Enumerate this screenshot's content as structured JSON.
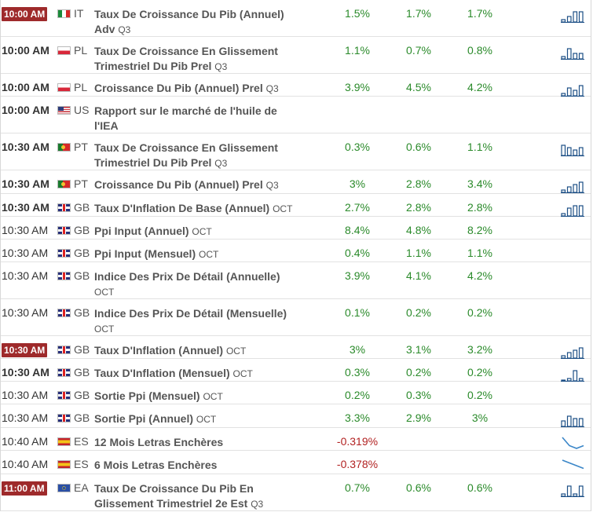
{
  "events": [
    {
      "time": "10:00 AM",
      "time_style": "box",
      "flag": "it",
      "country": "IT",
      "event": "Taux De Croissance Du Pib (Annuel) Adv",
      "period": "Q3",
      "actual": "1.5%",
      "consensus": "1.7%",
      "previous": "1.7%",
      "spark": {
        "type": "bars",
        "values": [
          1,
          2,
          4,
          4
        ]
      },
      "height": 47
    },
    {
      "time": "10:00 AM",
      "time_style": "bold",
      "flag": "pl",
      "country": "PL",
      "event": "Taux De Croissance En Glissement Trimestriel Du Pib Prel",
      "period": "Q3",
      "actual": "1.1%",
      "consensus": "0.7%",
      "previous": "0.8%",
      "spark": {
        "type": "bars",
        "values": [
          1,
          4,
          2,
          2
        ]
      },
      "height": 47
    },
    {
      "time": "10:00 AM",
      "time_style": "bold",
      "flag": "pl",
      "country": "PL",
      "event": "Croissance Du Pib (Annuel) Prel",
      "period": "Q3",
      "actual": "3.9%",
      "consensus": "4.5%",
      "previous": "4.2%",
      "spark": {
        "type": "bars",
        "values": [
          1,
          3,
          2,
          4
        ]
      },
      "height": 29
    },
    {
      "time": "10:00 AM",
      "time_style": "bold",
      "flag": "us",
      "country": "US",
      "event": "Rapport sur le marché de l'huile de l'IEA",
      "period": "",
      "actual": "",
      "consensus": "",
      "previous": "",
      "spark": null,
      "height": 47
    },
    {
      "time": "10:30 AM",
      "time_style": "bold",
      "flag": "pt",
      "country": "PT",
      "event": "Taux De Croissance En Glissement Trimestriel Du Pib Prel",
      "period": "Q3",
      "actual": "0.3%",
      "consensus": "0.6%",
      "previous": "1.1%",
      "spark": {
        "type": "bars",
        "values": [
          4,
          3,
          2,
          3
        ]
      },
      "height": 47
    },
    {
      "time": "10:30 AM",
      "time_style": "bold",
      "flag": "pt",
      "country": "PT",
      "event": "Croissance Du Pib (Annuel) Prel",
      "period": "Q3",
      "actual": "3%",
      "consensus": "2.8%",
      "previous": "3.4%",
      "spark": {
        "type": "bars",
        "values": [
          1,
          2,
          3,
          4
        ]
      },
      "height": 30
    },
    {
      "time": "10:30 AM",
      "time_style": "bold",
      "flag": "gb",
      "country": "GB",
      "event": "Taux D'Inflation De Base (Annuel)",
      "period": "OCT",
      "actual": "2.7%",
      "consensus": "2.8%",
      "previous": "2.8%",
      "spark": {
        "type": "bars",
        "values": [
          1,
          3,
          4,
          4
        ]
      },
      "height": 29
    },
    {
      "time": "10:30 AM",
      "time_style": "normal",
      "flag": "gb",
      "country": "GB",
      "event": "Ppi Input (Annuel)",
      "period": "OCT",
      "actual": "8.4%",
      "consensus": "4.8%",
      "previous": "8.2%",
      "spark": null,
      "height": 29
    },
    {
      "time": "10:30 AM",
      "time_style": "normal",
      "flag": "gb",
      "country": "GB",
      "event": "Ppi Input (Mensuel)",
      "period": "OCT",
      "actual": "0.4%",
      "consensus": "1.1%",
      "previous": "1.1%",
      "spark": null,
      "height": 29
    },
    {
      "time": "10:30 AM",
      "time_style": "normal",
      "flag": "gb",
      "country": "GB",
      "event": "Indice Des Prix De Détail (Annuelle)",
      "period": "OCT",
      "actual": "3.9%",
      "consensus": "4.1%",
      "previous": "4.2%",
      "spark": null,
      "height": 47
    },
    {
      "time": "10:30 AM",
      "time_style": "normal",
      "flag": "gb",
      "country": "GB",
      "event": "Indice Des Prix De Détail (Mensuelle)",
      "period": "OCT",
      "actual": "0.1%",
      "consensus": "0.2%",
      "previous": "0.2%",
      "spark": null,
      "height": 47
    },
    {
      "time": "10:30 AM",
      "time_style": "box",
      "flag": "gb",
      "country": "GB",
      "event": "Taux D'Inflation (Annuel)",
      "period": "OCT",
      "actual": "3%",
      "consensus": "3.1%",
      "previous": "3.2%",
      "spark": {
        "type": "bars",
        "values": [
          1,
          2,
          3,
          4
        ]
      },
      "height": 29
    },
    {
      "time": "10:30 AM",
      "time_style": "bold",
      "flag": "gb",
      "country": "GB",
      "event": "Taux D'Inflation (Mensuel)",
      "period": "OCT",
      "actual": "0.3%",
      "consensus": "0.2%",
      "previous": "0.2%",
      "spark": {
        "type": "bars",
        "values": [
          0,
          1,
          4,
          1
        ]
      },
      "height": 29
    },
    {
      "time": "10:30 AM",
      "time_style": "normal",
      "flag": "gb",
      "country": "GB",
      "event": "Sortie Ppi (Mensuel)",
      "period": "OCT",
      "actual": "0.2%",
      "consensus": "0.3%",
      "previous": "0.2%",
      "spark": null,
      "height": 29
    },
    {
      "time": "10:30 AM",
      "time_style": "normal",
      "flag": "gb",
      "country": "GB",
      "event": "Sortie Ppi (Annuel)",
      "period": "OCT",
      "actual": "3.3%",
      "consensus": "2.9%",
      "previous": "3%",
      "spark": {
        "type": "bars",
        "values": [
          2,
          4,
          3,
          3
        ]
      },
      "height": 30
    },
    {
      "time": "10:40 AM",
      "time_style": "normal",
      "flag": "es",
      "country": "ES",
      "event": "12 Mois Letras Enchères",
      "period": "",
      "actual": "-0.319%",
      "consensus": "",
      "previous": "",
      "actual_negative": true,
      "spark": {
        "type": "line",
        "values": [
          4,
          1,
          0,
          1
        ]
      },
      "height": 29
    },
    {
      "time": "10:40 AM",
      "time_style": "normal",
      "flag": "es",
      "country": "ES",
      "event": "6 Mois Letras Enchères",
      "period": "",
      "actual": "-0.378%",
      "consensus": "",
      "previous": "",
      "actual_negative": true,
      "spark": {
        "type": "line",
        "values": [
          4,
          3,
          2,
          1
        ]
      },
      "height": 30
    },
    {
      "time": "11:00 AM",
      "time_style": "box",
      "flag": "ea",
      "country": "EA",
      "event": "Taux De Croissance Du Pib En Glissement Trimestriel 2e Est",
      "period": "Q3",
      "actual": "0.7%",
      "consensus": "0.6%",
      "previous": "0.6%",
      "spark": {
        "type": "bars",
        "values": [
          1,
          4,
          1,
          4
        ]
      },
      "height": 47
    }
  ]
}
